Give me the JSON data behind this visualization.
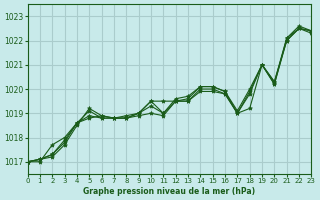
{
  "title": "Graphe pression niveau de la mer (hPa)",
  "bg_color": "#c8eaea",
  "grid_color": "#aacccc",
  "line_color": "#1a5c1a",
  "marker_color": "#1a5c1a",
  "xlim": [
    0,
    23
  ],
  "ylim": [
    1016.5,
    1023.5
  ],
  "yticks": [
    1017,
    1018,
    1019,
    1020,
    1021,
    1022,
    1023
  ],
  "xticks": [
    0,
    1,
    2,
    3,
    4,
    5,
    6,
    7,
    8,
    9,
    10,
    11,
    12,
    13,
    14,
    15,
    16,
    17,
    18,
    19,
    20,
    21,
    22,
    23
  ],
  "series": [
    [
      1017.0,
      1017.1,
      1017.2,
      1017.7,
      1018.5,
      1019.2,
      1018.9,
      1018.8,
      1018.8,
      1018.9,
      1019.0,
      1018.9,
      1019.5,
      1019.6,
      1020.1,
      1020.1,
      1019.9,
      1019.0,
      1019.2,
      1021.0,
      1020.3,
      1022.1,
      1022.6,
      1022.4
    ],
    [
      1017.0,
      1017.0,
      1017.7,
      1018.0,
      1018.6,
      1019.1,
      1018.8,
      1018.8,
      1018.9,
      1019.0,
      1019.3,
      1019.0,
      1019.6,
      1019.7,
      1020.1,
      1020.1,
      1019.9,
      1019.1,
      1020.0,
      1021.0,
      1020.3,
      1022.0,
      1022.5,
      1022.4
    ],
    [
      1017.0,
      1017.1,
      1017.3,
      1017.8,
      1018.6,
      1018.8,
      1018.9,
      1018.8,
      1018.8,
      1019.0,
      1019.5,
      1019.5,
      1019.5,
      1019.5,
      1020.0,
      1020.0,
      1019.8,
      1019.0,
      1019.8,
      1021.0,
      1020.2,
      1022.1,
      1022.5,
      1022.4
    ],
    [
      1017.0,
      1017.1,
      1017.3,
      1017.9,
      1018.6,
      1018.9,
      1018.8,
      1018.8,
      1018.8,
      1019.0,
      1019.5,
      1019.0,
      1019.5,
      1019.5,
      1019.9,
      1019.9,
      1019.8,
      1019.0,
      1019.9,
      1021.0,
      1020.2,
      1022.0,
      1022.5,
      1022.3
    ]
  ]
}
